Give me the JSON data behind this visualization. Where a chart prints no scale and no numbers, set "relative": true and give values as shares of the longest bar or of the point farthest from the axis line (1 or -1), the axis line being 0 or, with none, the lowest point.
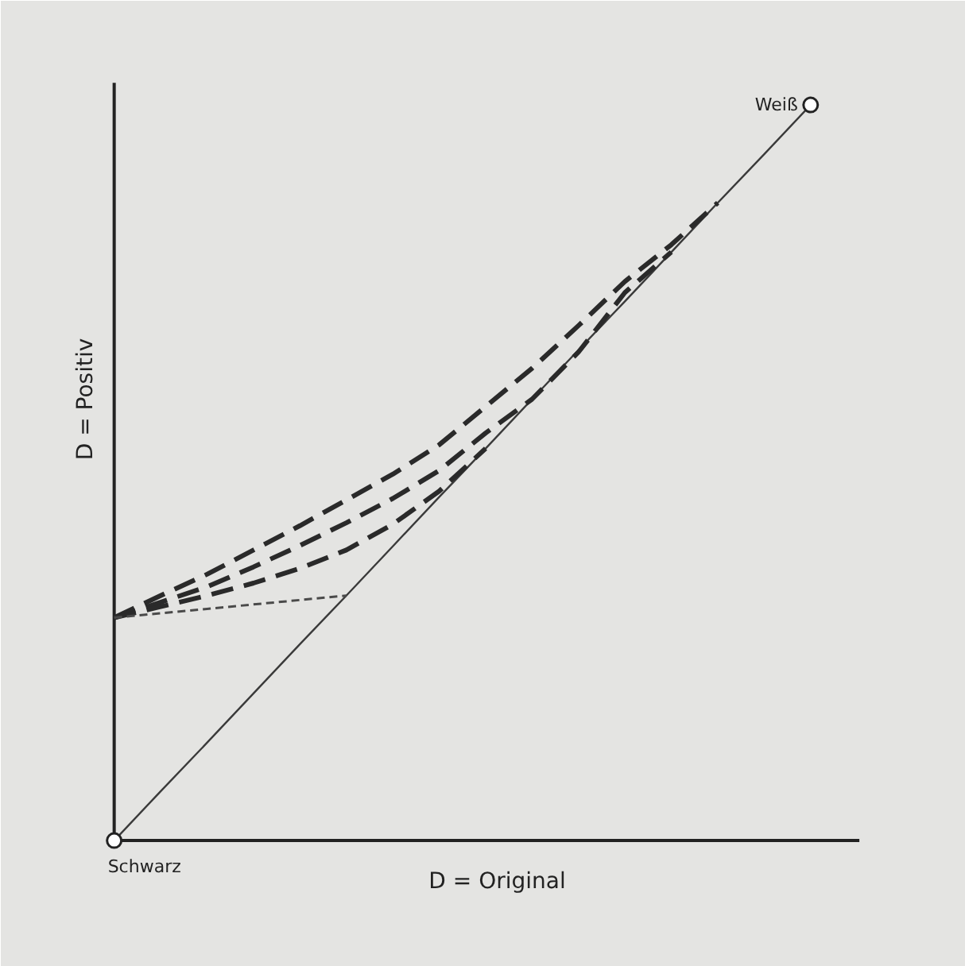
{
  "chart_data": {
    "type": "line",
    "relative": true,
    "xlabel": "D = Original",
    "ylabel": "D = Positiv",
    "categories": [
      null,
      null,
      null,
      null,
      null,
      null,
      null,
      null,
      null,
      null,
      null,
      null,
      null,
      null,
      null,
      null
    ],
    "series": [
      {
        "values": [
          0,
          0.067,
          0.133,
          0.2,
          0.267,
          0.333,
          0.4,
          0.467,
          0.533,
          0.6,
          0.667,
          0.733,
          0.8,
          0.867,
          0.933,
          1
        ],
        "color": "#3a3a3a",
        "line_style": "solid"
      },
      {
        "values": [
          0.303,
          0.333,
          0.362,
          0.395,
          0.428,
          0.463,
          0.498,
          0.538,
          0.59,
          0.642,
          0.7,
          0.76,
          0.81,
          0.867,
          null,
          null
        ],
        "color": "#2a2a2a",
        "line_style": "dashed"
      },
      {
        "values": [
          0.303,
          0.324,
          0.345,
          0.372,
          0.401,
          0.432,
          0.465,
          0.503,
          0.554,
          0.6,
          0.664,
          0.745,
          0.8,
          null,
          null,
          null
        ],
        "color": "#2a2a2a",
        "line_style": "dashed"
      },
      {
        "values": [
          0.303,
          0.318,
          0.333,
          0.35,
          0.37,
          0.395,
          0.43,
          0.475,
          0.533,
          null,
          null,
          null,
          null,
          null,
          null,
          null
        ],
        "color": "#2a2a2a",
        "line_style": "dashed"
      },
      {
        "values": [
          0.303,
          0.309,
          0.315,
          0.321,
          0.327,
          0.333,
          null,
          null,
          null,
          null,
          null,
          null,
          null,
          null,
          null,
          null
        ],
        "color": "#4a4a4a",
        "line_style": "dotted"
      }
    ],
    "annotations": [
      "Schwarz",
      "Weiß"
    ]
  }
}
